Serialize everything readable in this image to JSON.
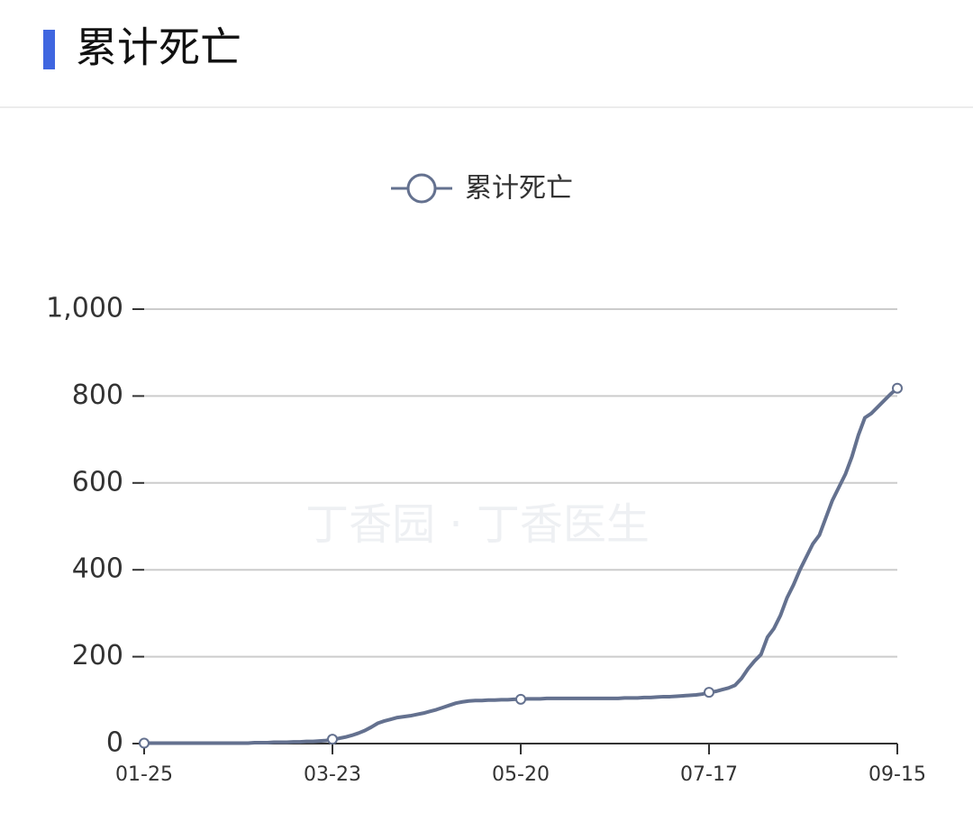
{
  "header": {
    "title": "累计死亡"
  },
  "chart_data": {
    "type": "line",
    "watermark": "丁香园 · 丁香医生",
    "categories": [
      "01-25",
      null,
      null,
      null,
      null,
      null,
      null,
      null,
      null,
      null,
      null,
      null,
      null,
      null,
      null,
      null,
      null,
      null,
      null,
      null,
      null,
      null,
      null,
      null,
      null,
      null,
      null,
      null,
      null,
      "03-23",
      null,
      null,
      null,
      null,
      null,
      null,
      null,
      null,
      null,
      null,
      null,
      null,
      null,
      null,
      null,
      null,
      null,
      null,
      null,
      null,
      null,
      null,
      null,
      null,
      null,
      null,
      null,
      null,
      "05-20",
      null,
      null,
      null,
      null,
      null,
      null,
      null,
      null,
      null,
      null,
      null,
      null,
      null,
      null,
      null,
      null,
      null,
      null,
      null,
      null,
      null,
      null,
      null,
      null,
      null,
      null,
      null,
      null,
      "07-17",
      null,
      null,
      null,
      null,
      null,
      null,
      null,
      null,
      null,
      null,
      null,
      null,
      null,
      null,
      null,
      null,
      null,
      null,
      null,
      null,
      null,
      null,
      null,
      null,
      null,
      null,
      null,
      null,
      "09-15"
    ],
    "series": [
      {
        "name": "累计死亡",
        "color": "#64718f",
        "values": [
          1,
          1,
          1,
          1,
          1,
          1,
          1,
          1,
          1,
          1,
          1,
          1,
          1,
          1,
          1,
          1,
          1,
          2,
          2,
          2,
          3,
          3,
          3,
          4,
          4,
          5,
          5,
          6,
          7,
          10,
          12,
          15,
          19,
          24,
          30,
          38,
          47,
          52,
          56,
          60,
          62,
          64,
          67,
          70,
          74,
          78,
          83,
          88,
          93,
          96,
          98,
          99,
          99,
          100,
          100,
          101,
          101,
          102,
          102,
          103,
          103,
          103,
          104,
          104,
          104,
          104,
          104,
          104,
          104,
          104,
          104,
          104,
          104,
          104,
          105,
          105,
          105,
          106,
          106,
          107,
          108,
          108,
          109,
          110,
          111,
          112,
          114,
          118,
          120,
          124,
          128,
          134,
          150,
          172,
          190,
          205,
          245,
          265,
          295,
          335,
          365,
          400,
          430,
          460,
          480,
          520,
          560,
          590,
          620,
          660,
          710,
          750,
          760,
          775,
          790,
          805,
          818
        ]
      }
    ],
    "ylim": [
      0,
      1000
    ],
    "yticks": [
      0,
      200,
      400,
      600,
      800,
      {
        "value": 1000,
        "label": "1,000"
      }
    ],
    "grid": true
  }
}
